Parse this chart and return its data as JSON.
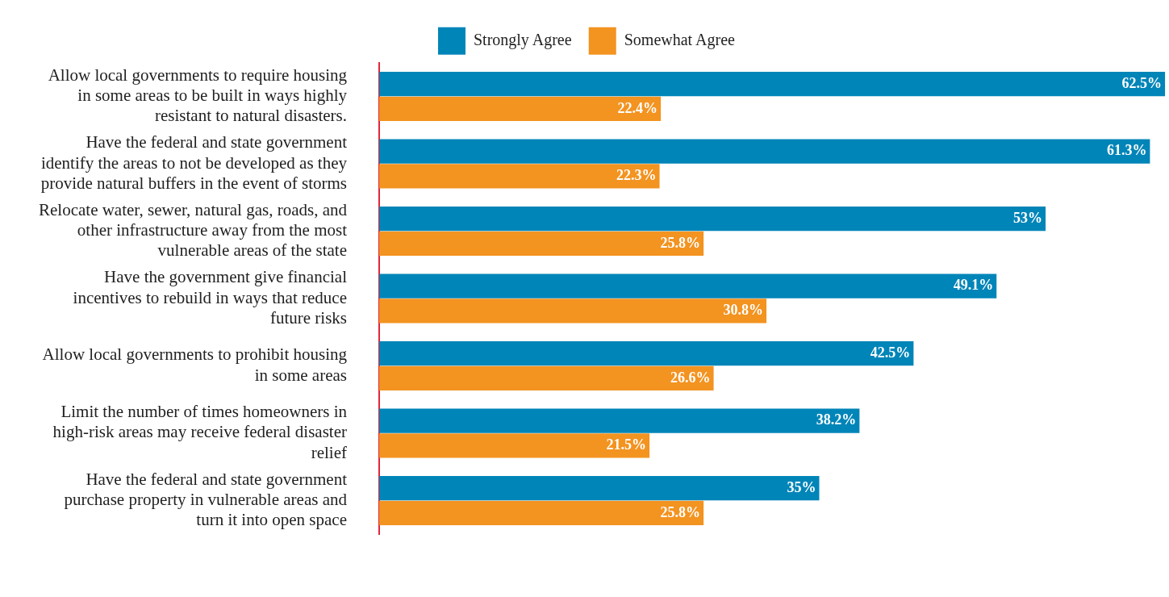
{
  "chart_data": {
    "type": "bar",
    "orientation": "horizontal",
    "legend": "top",
    "categories": [
      "Allow local governments to require housing in some areas to be built in ways highly resistant to natural disasters.",
      "Have the federal and state government identify the areas to not be developed as they provide natural buffers in the event of storms",
      "Relocate water, sewer, natural gas, roads, and other infrastructure away from the most vulnerable areas of the state",
      "Have the government give financial incentives to rebuild in ways that reduce future risks",
      "Allow local governments to prohibit housing in some areas",
      "Limit the number of times homeowners in high-risk areas may receive federal disaster relief",
      "Have the federal and state government purchase property in vulnerable areas and turn it into open space"
    ],
    "series": [
      {
        "name": "Strongly Agree",
        "color": "#0085b8",
        "values": [
          62.5,
          61.3,
          53,
          49.1,
          42.5,
          38.2,
          35
        ],
        "value_labels": [
          "62.5%",
          "61.3%",
          "53%",
          "49.1%",
          "42.5%",
          "38.2%",
          "35%"
        ]
      },
      {
        "name": "Somewhat Agree",
        "color": "#f39320",
        "values": [
          22.4,
          22.3,
          25.8,
          30.8,
          26.6,
          21.5,
          25.8
        ],
        "value_labels": [
          "22.4%",
          "22.3%",
          "25.8%",
          "30.8%",
          "26.6%",
          "21.5%",
          "25.8%"
        ]
      }
    ]
  }
}
